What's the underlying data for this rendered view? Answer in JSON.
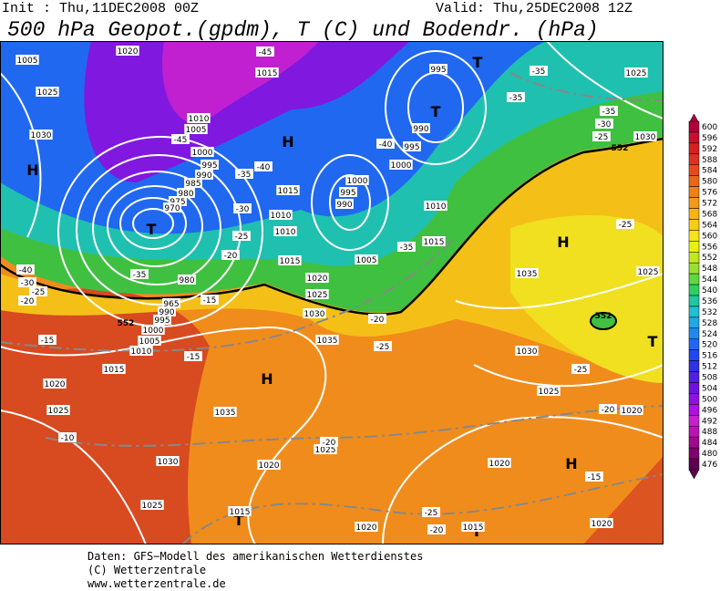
{
  "header": {
    "init": "Init : Thu,11DEC2008 00Z",
    "valid": "Valid: Thu,25DEC2008 12Z",
    "title": "500 hPa Geopot.(gpdm), T (C) und Bodendr. (hPa)"
  },
  "map": {
    "centers": [
      "H",
      "T",
      "H",
      "T",
      "T",
      "H",
      "H",
      "T",
      "H",
      "T",
      "T"
    ],
    "isobar_labels": [
      "1005",
      "1025",
      "1030",
      "1020",
      "1015",
      "1010",
      "1005",
      "1000",
      "995",
      "990",
      "985",
      "980",
      "975",
      "970",
      "995",
      "990",
      "995",
      "1000",
      "1000",
      "995",
      "990",
      "1015",
      "1010",
      "1010",
      "1010",
      "1015",
      "1015",
      "1005",
      "1020",
      "1025",
      "1030",
      "980",
      "965",
      "990",
      "995",
      "1000",
      "1005",
      "1010",
      "1015",
      "1020",
      "1025",
      "1035",
      "1035",
      "1035",
      "1025",
      "1030",
      "1025",
      "1020",
      "1030",
      "1025",
      "1020",
      "1020",
      "1025",
      "1015",
      "1020",
      "1015",
      "1020",
      "1025",
      "1030"
    ],
    "temperature_labels": [
      "-35",
      "-35",
      "-35",
      "-30",
      "-25",
      "-40",
      "-40",
      "-35",
      "-30",
      "-25",
      "-20",
      "-45",
      "-40",
      "-35",
      "-30",
      "-25",
      "-20",
      "-15",
      "-15",
      "-15",
      "-20",
      "-25",
      "-35",
      "-25",
      "-25",
      "-20",
      "-10",
      "-20",
      "-15",
      "-25",
      "-20",
      "-45"
    ],
    "height_labels": [
      "552",
      "552",
      "552"
    ]
  },
  "colorbar": {
    "ticks": [
      600,
      596,
      592,
      588,
      584,
      580,
      576,
      572,
      568,
      564,
      560,
      556,
      552,
      548,
      544,
      540,
      536,
      532,
      528,
      524,
      520,
      516,
      512,
      508,
      504,
      500,
      496,
      492,
      488,
      484,
      480,
      476
    ],
    "colors": [
      "#b0003a",
      "#c8102e",
      "#d82020",
      "#e03020",
      "#e84a1c",
      "#ec6618",
      "#f08018",
      "#f49a18",
      "#f7b418",
      "#f8cc18",
      "#f8e418",
      "#e8f010",
      "#c0e820",
      "#98e030",
      "#60d840",
      "#30d060",
      "#20c8a0",
      "#20c0d0",
      "#20a8e8",
      "#2088f0",
      "#2068f0",
      "#2048f0",
      "#3030e8",
      "#5020e0",
      "#7010e0",
      "#9010e0",
      "#b010e0",
      "#c820d0",
      "#c010b0",
      "#a00890",
      "#800070",
      "#600050"
    ]
  },
  "footer": {
    "lines": [
      "Daten: GFS−Modell des amerikanischen Wetterdienstes",
      "(C) Wetterzentrale",
      "www.wetterzentrale.de"
    ]
  }
}
